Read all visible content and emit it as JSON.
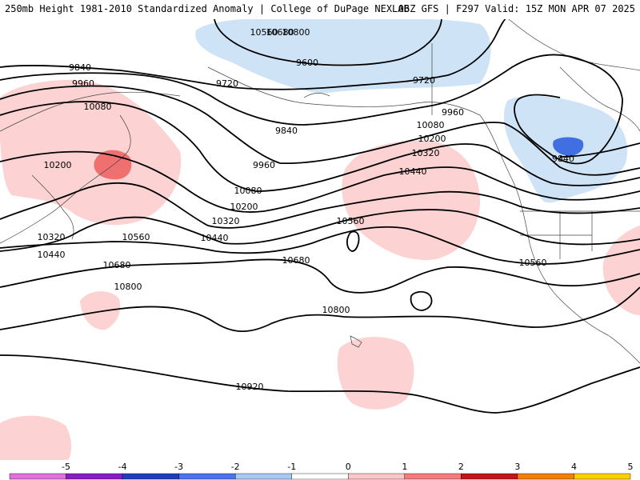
{
  "header": {
    "left": "250mb Height 1981-2010 Standardized Anomaly | College of DuPage NEXLAB",
    "right": "06Z GFS | F297 Valid: 15Z MON APR 07 2025"
  },
  "contour_labels": [
    {
      "id": "c9840a",
      "text": "9840"
    },
    {
      "id": "c9960a",
      "text": "9960"
    },
    {
      "id": "c10080a",
      "text": "10080"
    },
    {
      "id": "c10200a",
      "text": "10200"
    },
    {
      "id": "c10320a",
      "text": "10320"
    },
    {
      "id": "c10440a",
      "text": "10440"
    },
    {
      "id": "c10560a",
      "text": "10560"
    },
    {
      "id": "c10680a",
      "text": "10680"
    },
    {
      "id": "c10800a",
      "text": "10800"
    },
    {
      "id": "c9720a",
      "text": "9720"
    },
    {
      "id": "c9840b",
      "text": "9840"
    },
    {
      "id": "c9960b",
      "text": "9960"
    },
    {
      "id": "c10080b",
      "text": "10080"
    },
    {
      "id": "c10200b",
      "text": "10200"
    },
    {
      "id": "c10320b",
      "text": "10320"
    },
    {
      "id": "c10440b",
      "text": "10440"
    },
    {
      "id": "c10560b",
      "text": "10560"
    },
    {
      "id": "c10680b",
      "text": "10680"
    },
    {
      "id": "c10800b",
      "text": "10800"
    },
    {
      "id": "c10920a",
      "text": "10920"
    },
    {
      "id": "c9600a",
      "text": "9600"
    },
    {
      "id": "c9720b",
      "text": "9720"
    },
    {
      "id": "c9960c",
      "text": "9960"
    },
    {
      "id": "c10080c",
      "text": "10080"
    },
    {
      "id": "c10200c",
      "text": "10200"
    },
    {
      "id": "c10320c",
      "text": "10320"
    },
    {
      "id": "c10440c",
      "text": "10440"
    },
    {
      "id": "c10560c",
      "text": "10560"
    },
    {
      "id": "c10560d",
      "text": "10560"
    },
    {
      "id": "c10680c",
      "text": "10680"
    },
    {
      "id": "c10800c",
      "text": "10800"
    },
    {
      "id": "c9840c",
      "text": "9840"
    }
  ],
  "colorbar": {
    "ticks": [
      "-5",
      "-4",
      "-3",
      "-2",
      "-1",
      "0",
      "1",
      "2",
      "3",
      "4",
      "5"
    ],
    "colors": {
      "neg5": "#e070e0",
      "neg4": "#8a1bc4",
      "neg3": "#1f3fb8",
      "neg2": "#4a74ea",
      "neg1": "#a6c8f4",
      "neutral": "#ffffff",
      "pos1": "#fcc6c6",
      "pos2": "#f57a7a",
      "pos3": "#c01818",
      "pos4": "#f08000",
      "pos5": "#ffd000"
    }
  },
  "anomaly_colors": {
    "light_blue": "#cfe3f7",
    "mid_blue": "#3f6fe0",
    "light_red": "#fcd2d2",
    "mid_red": "#f07070"
  }
}
